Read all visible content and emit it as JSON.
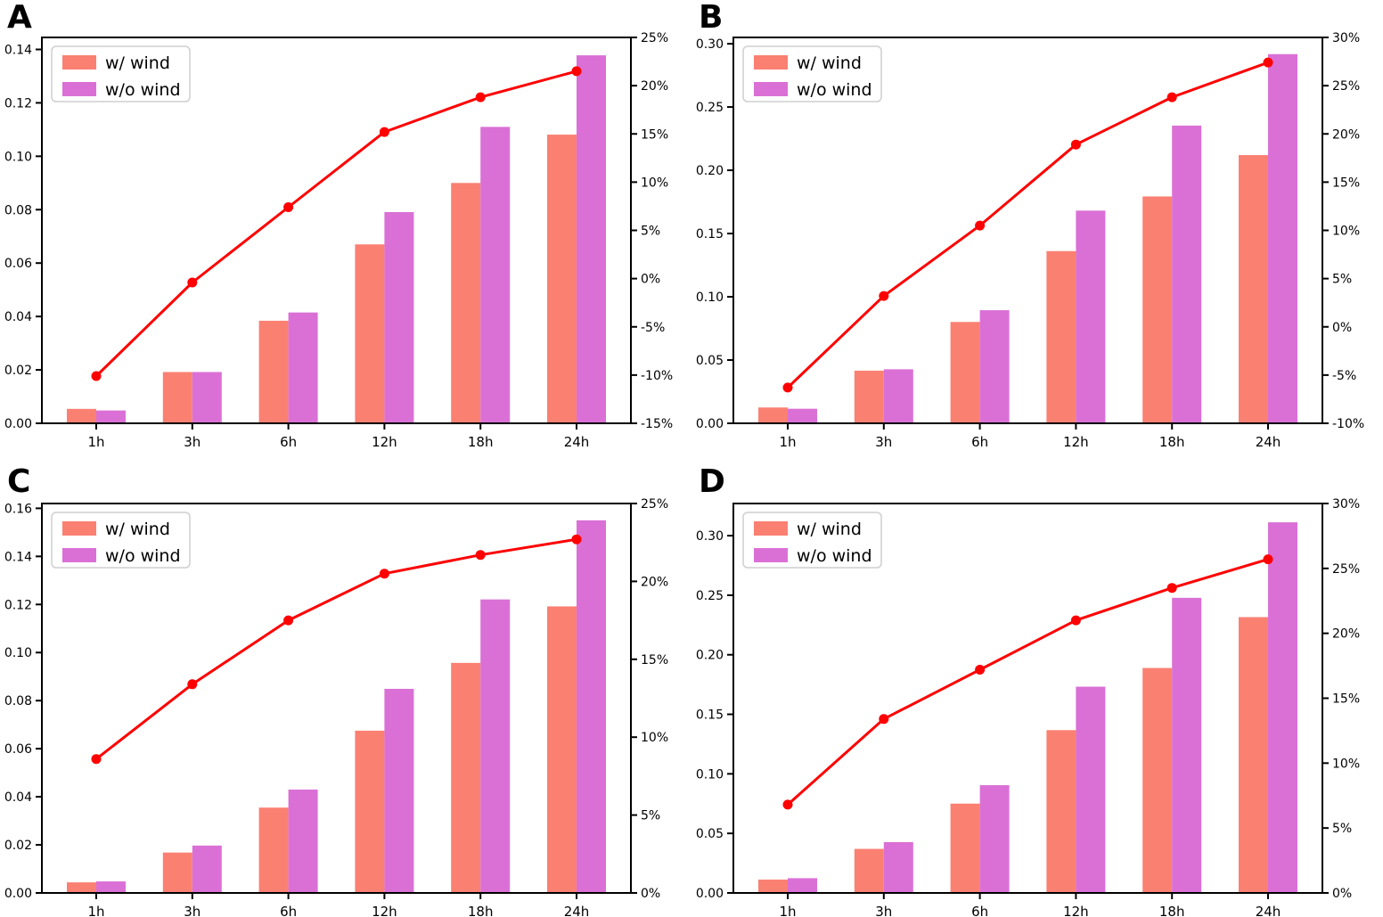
{
  "figure": {
    "background": "#ffffff",
    "axes_color": "#000000",
    "panel_labels": [
      "A",
      "B",
      "C",
      "D"
    ]
  },
  "colors": {
    "with_wind": "#FA8072",
    "without_wind": "#DA70D6",
    "trend_line": "#FF0000",
    "legend_border": "#cfcfcf"
  },
  "chart_data": [
    {
      "type": "bar+line",
      "panel_label": "A",
      "categories": [
        "1h",
        "3h",
        "6h",
        "12h",
        "18h",
        "24h"
      ],
      "series": [
        {
          "name": "w/ wind",
          "color": "#FA8072",
          "values": [
            0.0054,
            0.0192,
            0.0384,
            0.067,
            0.09,
            0.1081
          ]
        },
        {
          "name": "w/o wind",
          "color": "#DA70D6",
          "values": [
            0.0048,
            0.0192,
            0.0415,
            0.0791,
            0.111,
            0.1378
          ]
        }
      ],
      "line_series": {
        "axis": "right",
        "color": "#FF0000",
        "values_percent": [
          -10.1,
          -0.4,
          7.4,
          15.2,
          18.8,
          21.5
        ]
      },
      "left_axis": {
        "min": 0,
        "tick_max": 0.14,
        "tick_step": 0.02,
        "axis_max": 0.1445,
        "decimals": 2
      },
      "right_axis": {
        "min": -15,
        "max": 25,
        "tick_step": 5,
        "suffix": "%"
      },
      "legend_position": "upper left",
      "grid": false
    },
    {
      "type": "bar+line",
      "panel_label": "B",
      "categories": [
        "1h",
        "3h",
        "6h",
        "12h",
        "18h",
        "24h"
      ],
      "series": [
        {
          "name": "w/ wind",
          "color": "#FA8072",
          "values": [
            0.0125,
            0.0416,
            0.0801,
            0.1361,
            0.1793,
            0.212
          ]
        },
        {
          "name": "w/o wind",
          "color": "#DA70D6",
          "values": [
            0.0115,
            0.0427,
            0.0894,
            0.1681,
            0.2353,
            0.2918
          ]
        }
      ],
      "line_series": {
        "axis": "right",
        "color": "#FF0000",
        "values_percent": [
          -6.3,
          3.2,
          10.5,
          18.9,
          23.8,
          27.4
        ]
      },
      "left_axis": {
        "min": 0,
        "tick_max": 0.3,
        "tick_step": 0.05,
        "axis_max": 0.305,
        "decimals": 2
      },
      "right_axis": {
        "min": -10,
        "max": 30,
        "tick_step": 5,
        "suffix": "%"
      },
      "legend_position": "upper left",
      "grid": false
    },
    {
      "type": "bar+line",
      "panel_label": "C",
      "categories": [
        "1h",
        "3h",
        "6h",
        "12h",
        "18h",
        "24h"
      ],
      "series": [
        {
          "name": "w/ wind",
          "color": "#FA8072",
          "values": [
            0.0044,
            0.0168,
            0.0355,
            0.0675,
            0.0957,
            0.1192
          ]
        },
        {
          "name": "w/o wind",
          "color": "#DA70D6",
          "values": [
            0.0048,
            0.0197,
            0.043,
            0.0849,
            0.1221,
            0.155
          ]
        }
      ],
      "line_series": {
        "axis": "right",
        "color": "#FF0000",
        "values_percent": [
          8.6,
          13.4,
          17.5,
          20.5,
          21.7,
          22.7
        ]
      },
      "left_axis": {
        "min": 0,
        "tick_max": 0.16,
        "tick_step": 0.02,
        "axis_max": 0.162,
        "decimals": 2
      },
      "right_axis": {
        "min": 0,
        "max": 25,
        "tick_step": 5,
        "suffix": "%"
      },
      "legend_position": "upper left",
      "grid": false
    },
    {
      "type": "bar+line",
      "panel_label": "D",
      "categories": [
        "1h",
        "3h",
        "6h",
        "12h",
        "18h",
        "24h"
      ],
      "series": [
        {
          "name": "w/ wind",
          "color": "#FA8072",
          "values": [
            0.0112,
            0.037,
            0.075,
            0.1367,
            0.1889,
            0.2316
          ]
        },
        {
          "name": "w/o wind",
          "color": "#DA70D6",
          "values": [
            0.0124,
            0.0427,
            0.0905,
            0.1732,
            0.2478,
            0.3112
          ]
        }
      ],
      "line_series": {
        "axis": "right",
        "color": "#FF0000",
        "values_percent": [
          6.8,
          13.4,
          17.2,
          21.0,
          23.5,
          25.7
        ]
      },
      "left_axis": {
        "min": 0,
        "tick_max": 0.3,
        "tick_step": 0.05,
        "axis_max": 0.327,
        "decimals": 2
      },
      "right_axis": {
        "min": 0,
        "max": 30,
        "tick_step": 5,
        "suffix": "%"
      },
      "legend_position": "upper left",
      "grid": false
    }
  ]
}
